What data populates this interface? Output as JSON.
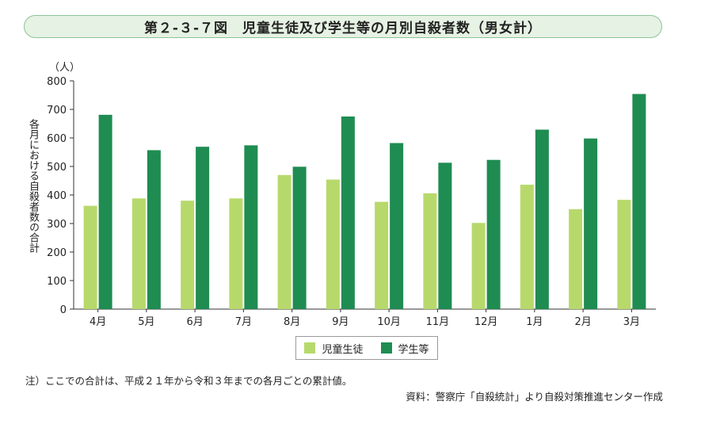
{
  "title": "第２-３-７図　児童生徒及び学生等の月別自殺者数（男女計）",
  "unit_label": "（人）",
  "note": "注）ここでの合計は、平成２１年から令和３年までの各月ごとの累計値。",
  "source": "資料：警察庁「自殺統計」より自殺対策推進センター作成",
  "colors": {
    "series1": "#b7d96b",
    "series2": "#1f8c52"
  },
  "chart_data": {
    "type": "bar",
    "title": "第２-３-７図　児童生徒及び学生等の月別自殺者数（男女計）",
    "xlabel": "",
    "ylabel": "各月における自殺者数の合計",
    "ylim": [
      0,
      800
    ],
    "yticks": [
      0,
      100,
      200,
      300,
      400,
      500,
      600,
      700,
      800
    ],
    "grid": false,
    "legend_position": "bottom",
    "categories": [
      "4月",
      "5月",
      "6月",
      "7月",
      "8月",
      "9月",
      "10月",
      "11月",
      "12月",
      "1月",
      "2月",
      "3月"
    ],
    "series": [
      {
        "name": "児童生徒",
        "values": [
          362,
          388,
          380,
          388,
          470,
          454,
          376,
          406,
          302,
          436,
          350,
          383
        ]
      },
      {
        "name": "学生等",
        "values": [
          681,
          557,
          569,
          574,
          499,
          675,
          582,
          513,
          523,
          629,
          598,
          754
        ]
      }
    ]
  }
}
